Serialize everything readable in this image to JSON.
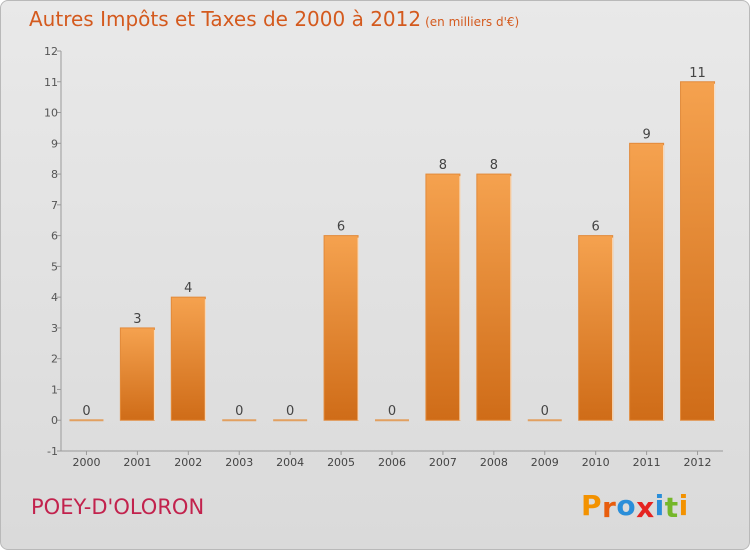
{
  "header": {
    "title": "Autres Impôts et Taxes de 2000 à 2012",
    "unit": "(en milliers d'€)"
  },
  "footer": {
    "commune": "POEY-D'OLORON"
  },
  "logo": {
    "text": "Proxiti",
    "letters": [
      "P",
      "r",
      "o",
      "x",
      "i",
      "t",
      "i"
    ],
    "colors": [
      "#f39200",
      "#e85d0c",
      "#2a8ed9",
      "#e52421",
      "#2a8ed9",
      "#75b72a",
      "#f39200"
    ]
  },
  "chart_data": {
    "type": "bar",
    "title": "Autres Impôts et Taxes de 2000 à 2012",
    "subtitle": "(en milliers d'€)",
    "categories": [
      "2000",
      "2001",
      "2002",
      "2003",
      "2004",
      "2005",
      "2006",
      "2007",
      "2008",
      "2009",
      "2010",
      "2011",
      "2012"
    ],
    "values": [
      0,
      3,
      4,
      0,
      0,
      6,
      0,
      8,
      8,
      0,
      6,
      9,
      11
    ],
    "value_labels": [
      "0",
      "3",
      "4",
      "0",
      "0",
      "6",
      "0",
      "8",
      "8",
      "0",
      "6",
      "9",
      "11"
    ],
    "ylim": [
      -1,
      12
    ],
    "yticks": [
      -1,
      0,
      1,
      2,
      3,
      4,
      5,
      6,
      7,
      8,
      9,
      10,
      11,
      12
    ],
    "ytick_labels": [
      "-1",
      "0",
      "1",
      "2",
      "3",
      "4",
      "5",
      "6",
      "7",
      "8",
      "9",
      "10",
      "11",
      "12"
    ],
    "grid": false,
    "bar_color_top": "#f5a24f",
    "bar_color_bottom": "#cf6c18"
  }
}
